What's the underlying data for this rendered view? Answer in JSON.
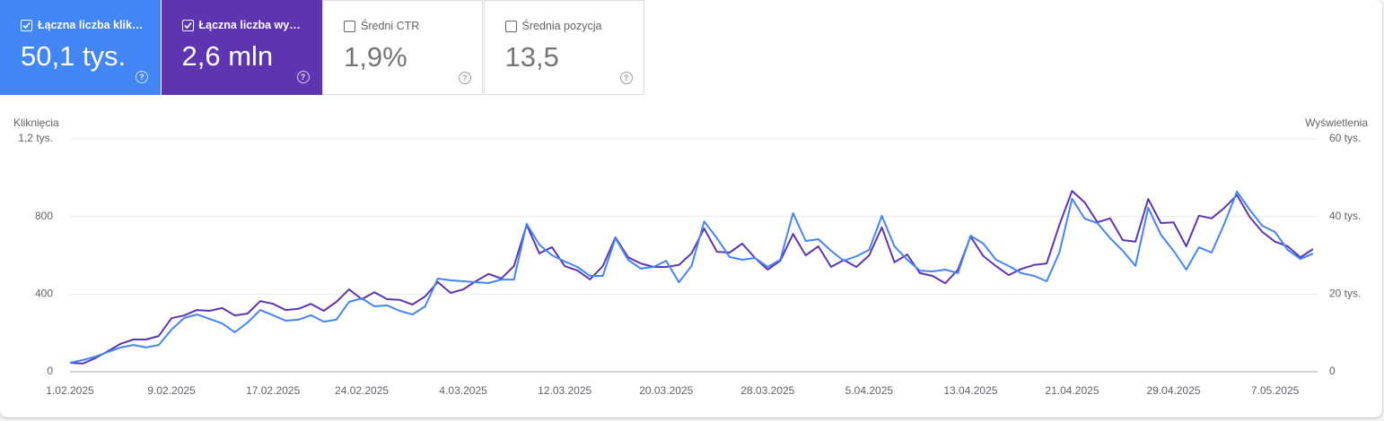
{
  "metric_cards": [
    {
      "label": "Łączna liczba klik…",
      "value": "50,1 tys.",
      "checked": true,
      "color": "#4285f4"
    },
    {
      "label": "Łączna liczba wy…",
      "value": "2,6 mln",
      "checked": true,
      "color": "#5e35b1"
    },
    {
      "label": "Średni CTR",
      "value": "1,9%",
      "checked": false,
      "color": "#ffffff"
    },
    {
      "label": "Średnia pozycja",
      "value": "13,5",
      "checked": false,
      "color": "#ffffff"
    }
  ],
  "chart_data": {
    "type": "line",
    "y_label": "Kliknięcia",
    "y2_label": "Wyświetlenia",
    "categories": [
      "1.02.2025",
      null,
      null,
      null,
      null,
      null,
      null,
      null,
      "9.02.2025",
      null,
      null,
      null,
      null,
      null,
      null,
      null,
      "17.02.2025",
      null,
      null,
      null,
      null,
      null,
      null,
      "24.02.2025",
      null,
      null,
      null,
      null,
      null,
      null,
      null,
      "4.03.2025",
      null,
      null,
      null,
      null,
      null,
      null,
      null,
      "12.03.2025",
      null,
      null,
      null,
      null,
      null,
      null,
      null,
      "20.03.2025",
      null,
      null,
      null,
      null,
      null,
      null,
      null,
      "28.03.2025",
      null,
      null,
      null,
      null,
      null,
      null,
      null,
      "5.04.2025",
      null,
      null,
      null,
      null,
      null,
      null,
      null,
      "13.04.2025",
      null,
      null,
      null,
      null,
      null,
      null,
      null,
      "21.04.2025",
      null,
      null,
      null,
      null,
      null,
      null,
      null,
      "29.04.2025",
      null,
      null,
      null,
      null,
      null,
      null,
      null,
      "7.05.2025",
      null,
      null,
      null
    ],
    "series": [
      {
        "color": "#4285f4",
        "values": [
          46,
          60,
          78,
          102,
          125,
          138,
          125,
          138,
          217,
          277,
          295,
          272,
          249,
          203,
          254,
          318,
          291,
          263,
          268,
          291,
          258,
          268,
          360,
          378,
          337,
          342,
          314,
          295,
          337,
          480,
          471,
          466,
          461,
          457,
          475,
          475,
          762,
          655,
          600,
          568,
          540,
          494,
          494,
          688,
          577,
          531,
          540,
          572,
          461,
          545,
          775,
          688,
          591,
          577,
          586,
          540,
          577,
          817,
          674,
          683,
          623,
          572,
          595,
          628,
          803,
          646,
          577,
          521,
          517,
          526,
          508,
          701,
          660,
          577,
          545,
          508,
          494,
          466,
          614,
          891,
          789,
          766,
          688,
          623,
          545,
          845,
          706,
          623,
          526,
          641,
          614,
          762,
          928,
          835,
          752,
          720,
          628,
          581,
          609
        ]
      },
      {
        "color": "#5e35b1",
        "axis": "y2",
        "values": [
          2300,
          2100,
          3500,
          5300,
          7200,
          8300,
          8300,
          9200,
          13800,
          14500,
          15900,
          15700,
          16400,
          14500,
          15000,
          18200,
          17500,
          15900,
          16200,
          17500,
          15700,
          18000,
          21200,
          18700,
          20500,
          18700,
          18500,
          17300,
          19400,
          23100,
          20300,
          21200,
          23300,
          25200,
          24000,
          27200,
          37800,
          30500,
          32100,
          27200,
          26100,
          23800,
          27200,
          34600,
          29500,
          27900,
          27000,
          27000,
          27500,
          30500,
          36900,
          30900,
          30700,
          33000,
          29300,
          26300,
          28600,
          35500,
          30000,
          32300,
          27000,
          28800,
          27000,
          30000,
          37200,
          28200,
          30200,
          25400,
          24700,
          22800,
          26300,
          34800,
          29800,
          27200,
          24900,
          26500,
          27500,
          27900,
          37800,
          46600,
          43600,
          38500,
          39500,
          33900,
          33500,
          44500,
          38300,
          38500,
          32300,
          40200,
          39500,
          42200,
          45500,
          39900,
          36000,
          33500,
          32300,
          29500,
          31600
        ]
      }
    ],
    "ylim": [
      0,
      1200
    ],
    "yticks": [
      0,
      400,
      800,
      {
        "value": 1200,
        "label": "1,2 tys."
      }
    ],
    "y2lim": [
      0,
      60000
    ],
    "y2ticks": [
      0,
      {
        "value": 20000,
        "label": "20 tys."
      },
      {
        "value": 40000,
        "label": "40 tys."
      },
      {
        "value": 60000,
        "label": "60 tys."
      }
    ],
    "grid": true
  }
}
